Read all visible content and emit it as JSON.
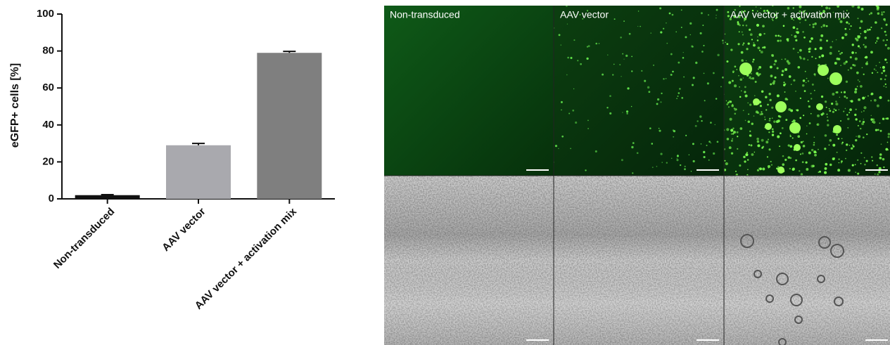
{
  "chart_data": {
    "type": "bar",
    "y_label": "eGFP+ cells [%]",
    "categories": [
      "Non-transduced",
      "AAV vector",
      "AAV vector + activation mix"
    ],
    "values": [
      2,
      29,
      79
    ],
    "errors": [
      0.3,
      1,
      0.8
    ],
    "colors": [
      "#111111",
      "#a9a9ae",
      "#7f7f7f"
    ],
    "ylim": [
      0,
      100
    ],
    "yticks": [
      0,
      20,
      40,
      60,
      80,
      100
    ]
  },
  "images": {
    "labels": [
      "Non-transduced",
      "AAV vector",
      "AAV vector + activation mix"
    ]
  }
}
